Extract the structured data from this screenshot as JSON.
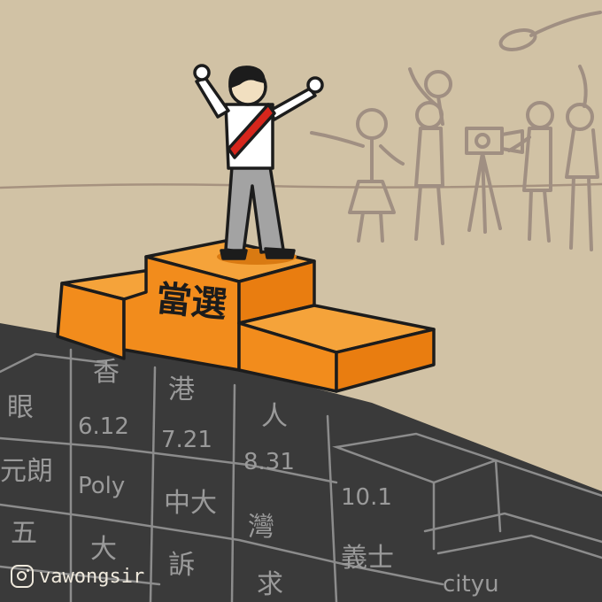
{
  "podium": {
    "label": "當選"
  },
  "wall": {
    "row1": [
      "香",
      "港",
      "人"
    ],
    "row2": [
      "眼",
      "6.12",
      "7.21",
      "8.31"
    ],
    "row3": [
      "元朗",
      "Poly",
      "中大",
      "10.1"
    ],
    "row4": [
      "五",
      "大",
      "灣",
      "義士"
    ],
    "row5": [
      "訴",
      "求",
      "cityu"
    ]
  },
  "credit": {
    "handle": "vawongsir",
    "icon": "instagram-icon"
  },
  "colors": {
    "background": "#d1c2a5",
    "wall": "#3a3a3a",
    "podium": "#f28c1c",
    "sash": "#d6261c",
    "crowd": "#a08f82"
  }
}
